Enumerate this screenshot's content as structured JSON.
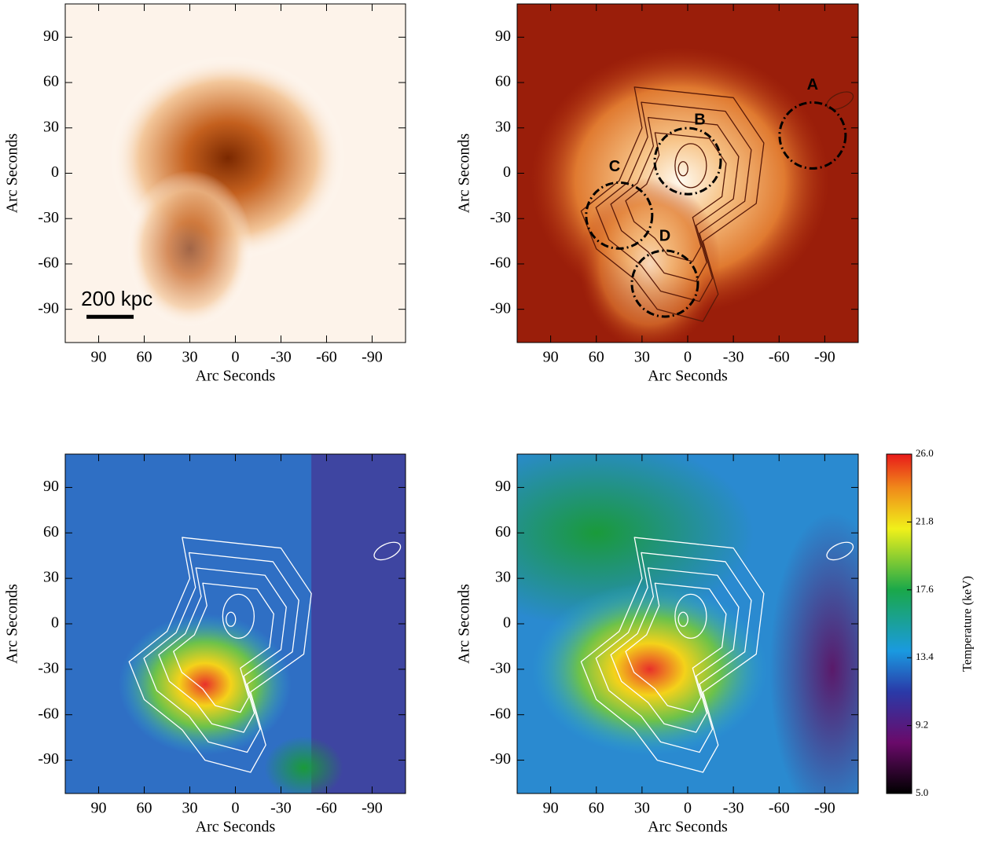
{
  "chart_data": [
    {
      "type": "image",
      "xlabel": "Arc Seconds",
      "ylabel": "Arc Seconds",
      "xlim": [
        112,
        -112
      ],
      "ylim": [
        -112,
        112
      ],
      "xticks": [
        90,
        60,
        30,
        0,
        -30,
        -60,
        -90
      ],
      "yticks": [
        90,
        60,
        30,
        0,
        -30,
        -60,
        -90
      ],
      "annotations": [
        "200 kpc"
      ]
    },
    {
      "type": "image",
      "xlabel": "Arc Seconds",
      "ylabel": "Arc Seconds",
      "xlim": [
        112,
        -112
      ],
      "ylim": [
        -112,
        112
      ],
      "xticks": [
        90,
        60,
        30,
        0,
        -30,
        -60,
        -90
      ],
      "yticks": [
        90,
        60,
        30,
        0,
        -30,
        -60,
        -90
      ],
      "annotations": [
        "A",
        "B",
        "C",
        "D"
      ]
    },
    {
      "type": "image",
      "xlabel": "Arc Seconds",
      "ylabel": "Arc Seconds",
      "xlim": [
        112,
        -112
      ],
      "ylim": [
        -112,
        112
      ],
      "xticks": [
        90,
        60,
        30,
        0,
        -30,
        -60,
        -90
      ],
      "yticks": [
        90,
        60,
        30,
        0,
        -30,
        -60,
        -90
      ]
    },
    {
      "type": "image",
      "xlabel": "Arc Seconds",
      "ylabel": "Arc Seconds",
      "xlim": [
        112,
        -112
      ],
      "ylim": [
        -112,
        112
      ],
      "xticks": [
        90,
        60,
        30,
        0,
        -30,
        -60,
        -90
      ],
      "yticks": [
        90,
        60,
        30,
        0,
        -30,
        -60,
        -90
      ],
      "colorbar": {
        "label": "Temperature (keV)",
        "lim": [
          5,
          26
        ],
        "ticks": [
          {
            "value": 5,
            "label": "5.0"
          },
          {
            "value": 9.2,
            "label": "9.2"
          },
          {
            "value": 13.4,
            "label": "13.4"
          },
          {
            "value": 17.6,
            "label": "17.6"
          },
          {
            "value": 21.8,
            "label": "21.8"
          },
          {
            "value": 26,
            "label": "26.0"
          }
        ]
      }
    }
  ]
}
